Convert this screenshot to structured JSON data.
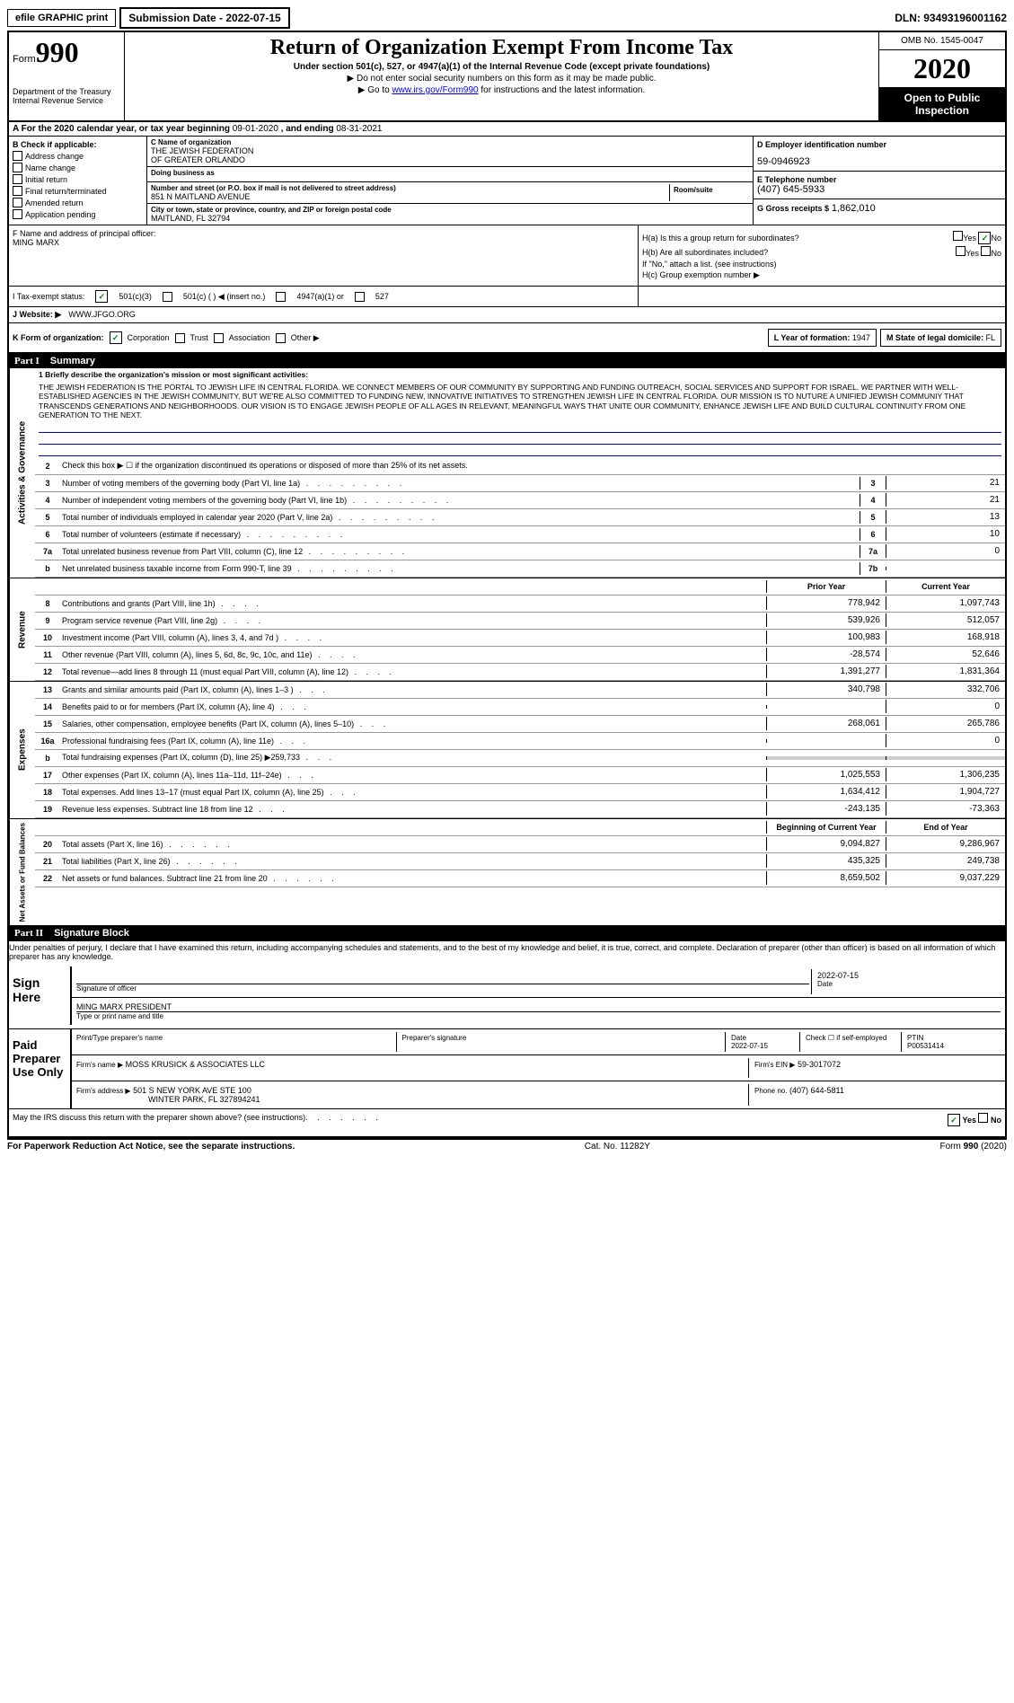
{
  "top": {
    "efile": "efile GRAPHIC print",
    "submission": "Submission Date - 2022-07-15",
    "dln": "DLN: 93493196001162"
  },
  "header": {
    "form_label": "Form",
    "form_num": "990",
    "title": "Return of Organization Exempt From Income Tax",
    "subtitle": "Under section 501(c), 527, or 4947(a)(1) of the Internal Revenue Code (except private foundations)",
    "instruction1": "▶ Do not enter social security numbers on this form as it may be made public.",
    "instruction2_a": "▶ Go to ",
    "instruction2_link": "www.irs.gov/Form990",
    "instruction2_b": " for instructions and the latest information.",
    "omb": "OMB No. 1545-0047",
    "year": "2020",
    "open_public1": "Open to Public",
    "open_public2": "Inspection",
    "dept1": "Department of the Treasury",
    "dept2": "Internal Revenue Service"
  },
  "period": {
    "text_a": "A   For the 2020 calendar year, or tax year beginning ",
    "begin": "09-01-2020",
    "text_b": "   , and ending ",
    "end": "08-31-2021"
  },
  "checkboxes": {
    "label": "B Check if applicable:",
    "items": [
      "Address change",
      "Name change",
      "Initial return",
      "Final return/terminated",
      "Amended return",
      "Application pending"
    ]
  },
  "org": {
    "name_label": "C Name of organization",
    "name1": "THE JEWISH FEDERATION",
    "name2": "OF GREATER ORLANDO",
    "dba_label": "Doing business as",
    "addr_label": "Number and street (or P.O. box if mail is not delivered to street address)",
    "room_label": "Room/suite",
    "addr": "851 N MAITLAND AVENUE",
    "city_label": "City or town, state or province, country, and ZIP or foreign postal code",
    "city": "MAITLAND, FL  32794",
    "officer_label": "F  Name and address of principal officer:",
    "officer": "MING MARX"
  },
  "right": {
    "ein_label": "D Employer identification number",
    "ein": "59-0946923",
    "phone_label": "E Telephone number",
    "phone": "(407) 645-5933",
    "gross_label": "G Gross receipts $",
    "gross": "1,862,010"
  },
  "h_section": {
    "ha": "H(a)  Is this a group return for subordinates?",
    "hb": "H(b)  Are all subordinates included?",
    "hb_note": "If \"No,\" attach a list. (see instructions)",
    "hc": "H(c)  Group exemption number ▶",
    "yes": "Yes",
    "no": "No"
  },
  "tax_status": {
    "label": "I   Tax-exempt status:",
    "opt1": "501(c)(3)",
    "opt2": "501(c) (   ) ◀ (insert no.)",
    "opt3": "4947(a)(1) or",
    "opt4": "527"
  },
  "website": {
    "label": "J  Website: ▶",
    "value": "WWW.JFGO.ORG"
  },
  "korg": {
    "label": "K Form of organization:",
    "corp": "Corporation",
    "trust": "Trust",
    "assoc": "Association",
    "other": "Other ▶",
    "year_label": "L Year of formation:",
    "year": "1947",
    "state_label": "M State of legal domicile:",
    "state": "FL"
  },
  "part1": {
    "num": "Part I",
    "title": "Summary"
  },
  "mission": {
    "label": "1   Briefly describe the organization's mission or most significant activities:",
    "text": "THE JEWISH FEDERATION IS THE PORTAL TO JEWISH LIFE IN CENTRAL FLORIDA. WE CONNECT MEMBERS OF OUR COMMUNITY BY SUPPORTING AND FUNDING OUTREACH, SOCIAL SERVICES AND SUPPORT FOR ISRAEL. WE PARTNER WITH WELL-ESTABLISHED AGENCIES IN THE JEWISH COMMUNITY, BUT WE'RE ALSO COMMITTED TO FUNDING NEW, INNOVATIVE INITIATIVES TO STRENGTHEN JEWISH LIFE IN CENTRAL FLORIDA. OUR MISSION IS TO NUTURE A UNIFIED JEWISH COMMUNIY THAT TRANSCENDS GENERATIONS AND NEIGHBORHOODS. OUR VISION IS TO ENGAGE JEWISH PEOPLE OF ALL AGES IN RELEVANT, MEANINGFUL WAYS THAT UNITE OUR COMMUNITY, ENHANCE JEWISH LIFE AND BUILD CULTURAL CONTINUITY FROM ONE GENERATION TO THE NEXT."
  },
  "side_labels": {
    "activities": "Activities & Governance",
    "revenue": "Revenue",
    "expenses": "Expenses",
    "netassets": "Net Assets or Fund Balances"
  },
  "line2": "Check this box ▶ ☐  if the organization discontinued its operations or disposed of more than 25% of its net assets.",
  "gov_lines": [
    {
      "num": "3",
      "desc": "Number of voting members of the governing body (Part VI, line 1a)",
      "col": "3",
      "val": "21"
    },
    {
      "num": "4",
      "desc": "Number of independent voting members of the governing body (Part VI, line 1b)",
      "col": "4",
      "val": "21"
    },
    {
      "num": "5",
      "desc": "Total number of individuals employed in calendar year 2020 (Part V, line 2a)",
      "col": "5",
      "val": "13"
    },
    {
      "num": "6",
      "desc": "Total number of volunteers (estimate if necessary)",
      "col": "6",
      "val": "10"
    },
    {
      "num": "7a",
      "desc": "Total unrelated business revenue from Part VIII, column (C), line 12",
      "col": "7a",
      "val": "0"
    },
    {
      "num": "b",
      "desc": "Net unrelated business taxable income from Form 990-T, line 39",
      "col": "7b",
      "val": ""
    }
  ],
  "col_headers": {
    "prior": "Prior Year",
    "current": "Current Year",
    "begin": "Beginning of Current Year",
    "end": "End of Year"
  },
  "rev_lines": [
    {
      "num": "8",
      "desc": "Contributions and grants (Part VIII, line 1h)",
      "prior": "778,942",
      "current": "1,097,743"
    },
    {
      "num": "9",
      "desc": "Program service revenue (Part VIII, line 2g)",
      "prior": "539,926",
      "current": "512,057"
    },
    {
      "num": "10",
      "desc": "Investment income (Part VIII, column (A), lines 3, 4, and 7d )",
      "prior": "100,983",
      "current": "168,918"
    },
    {
      "num": "11",
      "desc": "Other revenue (Part VIII, column (A), lines 5, 6d, 8c, 9c, 10c, and 11e)",
      "prior": "-28,574",
      "current": "52,646"
    },
    {
      "num": "12",
      "desc": "Total revenue—add lines 8 through 11 (must equal Part VIII, column (A), line 12)",
      "prior": "1,391,277",
      "current": "1,831,364"
    }
  ],
  "exp_lines": [
    {
      "num": "13",
      "desc": "Grants and similar amounts paid (Part IX, column (A), lines 1–3 )",
      "prior": "340,798",
      "current": "332,706"
    },
    {
      "num": "14",
      "desc": "Benefits paid to or for members (Part IX, column (A), line 4)",
      "prior": "",
      "current": "0"
    },
    {
      "num": "15",
      "desc": "Salaries, other compensation, employee benefits (Part IX, column (A), lines 5–10)",
      "prior": "268,061",
      "current": "265,786"
    },
    {
      "num": "16a",
      "desc": "Professional fundraising fees (Part IX, column (A), line 11e)",
      "prior": "",
      "current": "0"
    },
    {
      "num": "b",
      "desc": "Total fundraising expenses (Part IX, column (D), line 25) ▶259,733",
      "prior": "SHADED",
      "current": "SHADED"
    },
    {
      "num": "17",
      "desc": "Other expenses (Part IX, column (A), lines 11a–11d, 11f–24e)",
      "prior": "1,025,553",
      "current": "1,306,235"
    },
    {
      "num": "18",
      "desc": "Total expenses. Add lines 13–17 (must equal Part IX, column (A), line 25)",
      "prior": "1,634,412",
      "current": "1,904,727"
    },
    {
      "num": "19",
      "desc": "Revenue less expenses. Subtract line 18 from line 12",
      "prior": "-243,135",
      "current": "-73,363"
    }
  ],
  "net_lines": [
    {
      "num": "20",
      "desc": "Total assets (Part X, line 16)",
      "prior": "9,094,827",
      "current": "9,286,967"
    },
    {
      "num": "21",
      "desc": "Total liabilities (Part X, line 26)",
      "prior": "435,325",
      "current": "249,738"
    },
    {
      "num": "22",
      "desc": "Net assets or fund balances. Subtract line 21 from line 20",
      "prior": "8,659,502",
      "current": "9,037,229"
    }
  ],
  "part2": {
    "num": "Part II",
    "title": "Signature Block"
  },
  "penalty": "Under penalties of perjury, I declare that I have examined this return, including accompanying schedules and statements, and to the best of my knowledge and belief, it is true, correct, and complete. Declaration of preparer (other than officer) is based on all information of which preparer has any knowledge.",
  "sign": {
    "label": "Sign Here",
    "sig_label": "Signature of officer",
    "date_label": "Date",
    "date": "2022-07-15",
    "name": "MING MARX  PRESIDENT",
    "name_label": "Type or print name and title"
  },
  "preparer": {
    "label": "Paid Preparer Use Only",
    "print_label": "Print/Type preparer's name",
    "sig_label": "Preparer's signature",
    "date_label": "Date",
    "date": "2022-07-15",
    "check_label": "Check ☐  if self-employed",
    "ptin_label": "PTIN",
    "ptin": "P00531414",
    "firm_name_label": "Firm's name     ▶",
    "firm_name": "MOSS KRUSICK & ASSOCIATES LLC",
    "firm_ein_label": "Firm's EIN ▶",
    "firm_ein": "59-3017072",
    "firm_addr_label": "Firm's address ▶",
    "firm_addr1": "501 S NEW YORK AVE STE 100",
    "firm_addr2": "WINTER PARK, FL  327894241",
    "phone_label": "Phone no.",
    "phone": "(407) 644-5811"
  },
  "discuss": {
    "text": "May the IRS discuss this return with the preparer shown above? (see instructions)",
    "yes": "Yes",
    "no": "No"
  },
  "footer": {
    "left": "For Paperwork Reduction Act Notice, see the separate instructions.",
    "mid": "Cat. No. 11282Y",
    "right": "Form 990 (2020)"
  }
}
